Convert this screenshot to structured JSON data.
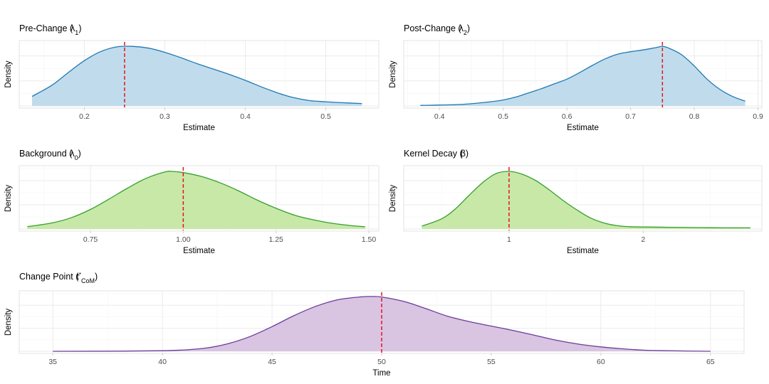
{
  "chart_data": [
    {
      "id": "pre",
      "type": "area",
      "title": "Pre-Change",
      "symbol": "λ",
      "subscript": "1",
      "xlabel": "Estimate",
      "ylabel": "Density",
      "xlim": [
        0.12,
        0.565
      ],
      "ylim": [
        0,
        1.05
      ],
      "xticks": [
        0.2,
        0.3,
        0.4,
        0.5
      ],
      "xtick_labels": [
        "0.2",
        "0.3",
        "0.4",
        "0.5"
      ],
      "true_value": 0.25,
      "fill": "#c0dcec",
      "stroke": "#1f78b4",
      "x": [
        0.135,
        0.16,
        0.18,
        0.2,
        0.22,
        0.24,
        0.26,
        0.28,
        0.3,
        0.32,
        0.34,
        0.36,
        0.38,
        0.4,
        0.42,
        0.44,
        0.46,
        0.48,
        0.5,
        0.52,
        0.545
      ],
      "y": [
        0.16,
        0.35,
        0.56,
        0.76,
        0.91,
        0.99,
        1.0,
        0.97,
        0.9,
        0.81,
        0.71,
        0.62,
        0.53,
        0.43,
        0.32,
        0.22,
        0.14,
        0.09,
        0.07,
        0.055,
        0.04
      ]
    },
    {
      "id": "post",
      "type": "area",
      "title": "Post-Change",
      "symbol": "λ",
      "subscript": "2",
      "xlabel": "Estimate",
      "ylabel": "Density",
      "xlim": [
        0.345,
        0.905
      ],
      "ylim": [
        0,
        1.05
      ],
      "xticks": [
        0.4,
        0.5,
        0.6,
        0.7,
        0.8,
        0.9
      ],
      "xtick_labels": [
        "0.4",
        "0.5",
        "0.6",
        "0.7",
        "0.8",
        "0.9"
      ],
      "true_value": 0.75,
      "fill": "#c0dcec",
      "stroke": "#1f78b4",
      "x": [
        0.37,
        0.4,
        0.44,
        0.48,
        0.5,
        0.52,
        0.54,
        0.56,
        0.58,
        0.6,
        0.62,
        0.64,
        0.66,
        0.68,
        0.7,
        0.72,
        0.74,
        0.75,
        0.76,
        0.78,
        0.8,
        0.82,
        0.84,
        0.86,
        0.88
      ],
      "y": [
        0.01,
        0.015,
        0.03,
        0.07,
        0.1,
        0.15,
        0.22,
        0.29,
        0.37,
        0.45,
        0.56,
        0.68,
        0.79,
        0.87,
        0.91,
        0.94,
        0.98,
        1.0,
        0.97,
        0.86,
        0.67,
        0.45,
        0.28,
        0.16,
        0.08
      ]
    },
    {
      "id": "background",
      "type": "area",
      "title": "Background",
      "symbol": "λ",
      "subscript": "0",
      "xlabel": "Estimate",
      "ylabel": "Density",
      "xlim": [
        0.56,
        1.525
      ],
      "ylim": [
        0,
        1.05
      ],
      "xticks": [
        0.75,
        1.0,
        1.25,
        1.5
      ],
      "xtick_labels": [
        "0.75",
        "1.00",
        "1.25",
        "1.50"
      ],
      "true_value": 1.0,
      "fill": "#c8e8a8",
      "stroke": "#33a02c",
      "x": [
        0.58,
        0.65,
        0.7,
        0.75,
        0.8,
        0.85,
        0.9,
        0.95,
        0.97,
        1.0,
        1.05,
        1.1,
        1.15,
        1.2,
        1.25,
        1.3,
        1.35,
        1.4,
        1.45,
        1.49
      ],
      "y": [
        0.04,
        0.11,
        0.2,
        0.34,
        0.52,
        0.71,
        0.88,
        0.99,
        1.0,
        0.98,
        0.91,
        0.8,
        0.66,
        0.5,
        0.36,
        0.24,
        0.16,
        0.1,
        0.06,
        0.04
      ]
    },
    {
      "id": "decay",
      "type": "area",
      "title": "Kernel Decay",
      "symbol": "β",
      "subscript": "",
      "xlabel": "Estimate",
      "ylabel": "Density",
      "xlim": [
        0.22,
        2.88
      ],
      "ylim": [
        0,
        1.05
      ],
      "xticks": [
        1,
        2
      ],
      "xtick_labels": [
        "1",
        "2"
      ],
      "true_value": 1.0,
      "fill": "#c8e8a8",
      "stroke": "#33a02c",
      "x": [
        0.35,
        0.5,
        0.6,
        0.7,
        0.8,
        0.9,
        1.0,
        1.1,
        1.2,
        1.3,
        1.4,
        1.5,
        1.6,
        1.7,
        1.8,
        1.9,
        2.0,
        2.2,
        2.4,
        2.6,
        2.8
      ],
      "y": [
        0.05,
        0.18,
        0.35,
        0.58,
        0.8,
        0.96,
        1.0,
        0.95,
        0.84,
        0.68,
        0.5,
        0.34,
        0.2,
        0.11,
        0.06,
        0.04,
        0.035,
        0.03,
        0.025,
        0.02,
        0.02
      ]
    },
    {
      "id": "changepoint",
      "type": "area",
      "title": "Change Point",
      "symbol": "t",
      "subscript": "CoM",
      "superscript": "*",
      "xlabel": "Time",
      "ylabel": "Density",
      "xlim": [
        33.5,
        66.5
      ],
      "ylim": [
        0,
        1.05
      ],
      "xticks": [
        35,
        40,
        45,
        50,
        55,
        60,
        65
      ],
      "xtick_labels": [
        "35",
        "40",
        "45",
        "50",
        "55",
        "60",
        "65"
      ],
      "true_value": 50,
      "fill": "#d9c4e2",
      "stroke": "#6a3d9a",
      "x": [
        35,
        38,
        40,
        41,
        42,
        43,
        44,
        45,
        46,
        47,
        48,
        49,
        49.5,
        50,
        51,
        52,
        53,
        54,
        55,
        56,
        57,
        58,
        59,
        60,
        61,
        62,
        63,
        65
      ],
      "y": [
        0.0,
        0.003,
        0.01,
        0.025,
        0.06,
        0.14,
        0.27,
        0.45,
        0.65,
        0.82,
        0.94,
        0.99,
        1.0,
        0.99,
        0.91,
        0.78,
        0.64,
        0.54,
        0.46,
        0.38,
        0.29,
        0.2,
        0.13,
        0.08,
        0.045,
        0.02,
        0.01,
        0.0
      ]
    }
  ]
}
